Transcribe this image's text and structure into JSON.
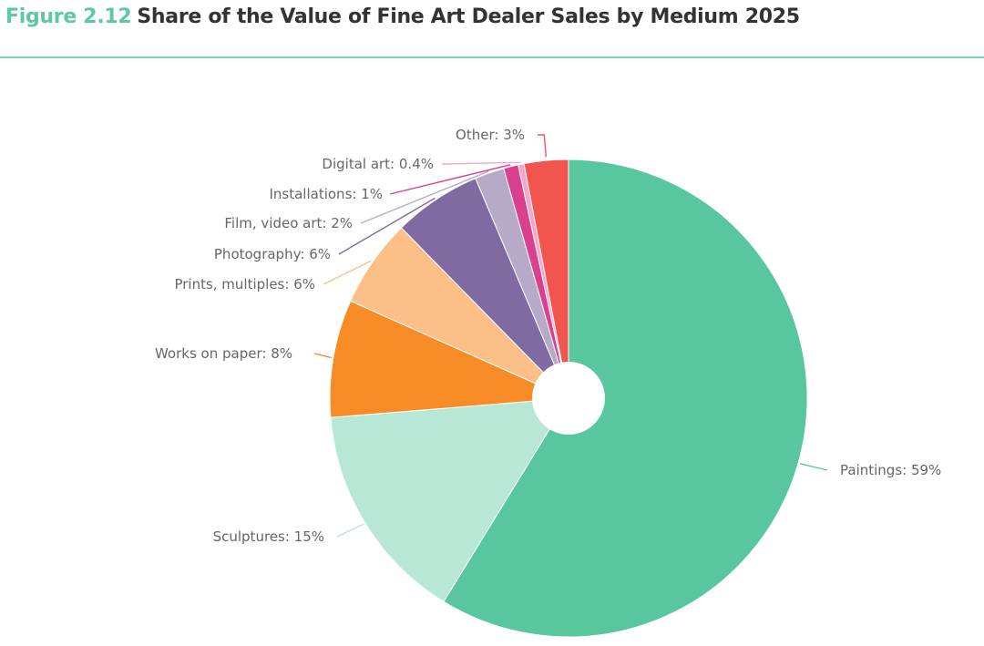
{
  "figure": {
    "number": "Figure 2.12",
    "title": "Share of the Value of Fine Art Dealer Sales by Medium 2025"
  },
  "chart_data": {
    "type": "pie",
    "title": "Share of the Value of Fine Art Dealer Sales by Medium 2025",
    "unit": "%",
    "donut_hole": true,
    "slices": [
      {
        "name": "Paintings",
        "value": 59,
        "label": "Paintings: 59%",
        "color": "#58c79e"
      },
      {
        "name": "Sculptures",
        "value": 15,
        "label": "Sculptures: 15%",
        "color": "#b8e7d6"
      },
      {
        "name": "Works on paper",
        "value": 8,
        "label": "Works on paper: 8%",
        "color": "#f78c26"
      },
      {
        "name": "Prints, multiples",
        "value": 6,
        "label": "Prints, multiples: 6%",
        "color": "#fdbf88"
      },
      {
        "name": "Photography",
        "value": 6,
        "label": "Photography: 6%",
        "color": "#7f6ba2"
      },
      {
        "name": "Film, video art",
        "value": 2,
        "label": "Film, video art: 2%",
        "color": "#b7aac9"
      },
      {
        "name": "Installations",
        "value": 1,
        "label": "Installations: 1%",
        "color": "#d9408e"
      },
      {
        "name": "Digital art",
        "value": 0.4,
        "label": "Digital art: 0.4%",
        "color": "#f7a6c9"
      },
      {
        "name": "Other",
        "value": 3,
        "label": "Other: 3%",
        "color": "#f2544e"
      }
    ]
  }
}
